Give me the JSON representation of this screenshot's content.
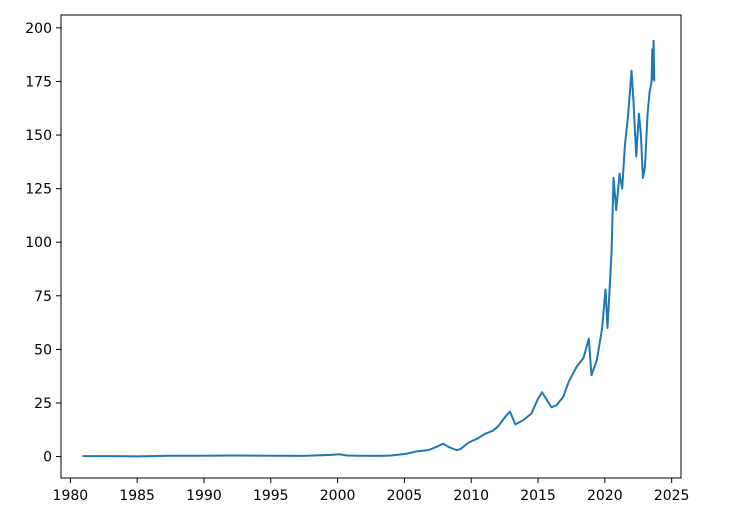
{
  "chart_data": {
    "type": "line",
    "title": "",
    "xlabel": "",
    "ylabel": "",
    "xlim": [
      1979.3,
      2025.7
    ],
    "ylim": [
      -10,
      206
    ],
    "grid": false,
    "legend": "none",
    "colors": {
      "series": "#1f77b4",
      "axes": "#000000",
      "background": "#ffffff"
    },
    "x_ticks": [
      1980,
      1985,
      1990,
      1995,
      2000,
      2005,
      2010,
      2015,
      2020,
      2025
    ],
    "x_tick_labels": [
      "1980",
      "1985",
      "1990",
      "1995",
      "2000",
      "2005",
      "2010",
      "2015",
      "2020",
      "2025"
    ],
    "y_ticks": [
      0,
      25,
      50,
      75,
      100,
      125,
      150,
      175,
      200
    ],
    "y_tick_labels": [
      "0",
      "25",
      "50",
      "75",
      "100",
      "125",
      "150",
      "175",
      "200"
    ],
    "series": [
      {
        "x": [
          1980.9,
          1983.0,
          1985.0,
          1987.5,
          1990.0,
          1992.0,
          1995.0,
          1997.5,
          1999.5,
          2000.1,
          2000.7,
          2001.5,
          2003.0,
          2004.0,
          2005.0,
          2005.5,
          2006.0,
          2006.8,
          2007.5,
          2007.9,
          2008.3,
          2008.9,
          2009.2,
          2009.8,
          2010.5,
          2011.0,
          2011.6,
          2012.0,
          2012.6,
          2012.9,
          2013.3,
          2013.9,
          2014.5,
          2015.0,
          2015.3,
          2015.6,
          2016.0,
          2016.4,
          2016.9,
          2017.3,
          2017.9,
          2018.4,
          2018.8,
          2019.0,
          2019.4,
          2019.8,
          2020.05,
          2020.2,
          2020.5,
          2020.65,
          2020.85,
          2021.1,
          2021.3,
          2021.5,
          2021.75,
          2022.0,
          2022.15,
          2022.35,
          2022.55,
          2022.7,
          2022.85,
          2023.0,
          2023.2,
          2023.35,
          2023.5,
          2023.55,
          2023.6,
          2023.65,
          2023.7
        ],
        "values": [
          0.2,
          0.2,
          0.1,
          0.4,
          0.4,
          0.5,
          0.4,
          0.3,
          0.8,
          1.1,
          0.5,
          0.4,
          0.3,
          0.5,
          1.2,
          1.8,
          2.5,
          3.0,
          4.8,
          6.0,
          4.5,
          3.0,
          3.5,
          6.5,
          8.5,
          10.5,
          12.0,
          14.0,
          19.0,
          21.0,
          15.0,
          17.0,
          20.0,
          27.0,
          30.0,
          27.0,
          23.0,
          24.0,
          28.0,
          35.0,
          42.0,
          46.0,
          55.0,
          38.0,
          45.0,
          60.0,
          78.0,
          60.0,
          95.0,
          130.0,
          115.0,
          132.0,
          125.0,
          145.0,
          160.0,
          180.0,
          165.0,
          140.0,
          160.0,
          150.0,
          130.0,
          135.0,
          160.0,
          170.0,
          175.0,
          190.0,
          176.0,
          194.0,
          175.0
        ]
      }
    ]
  }
}
